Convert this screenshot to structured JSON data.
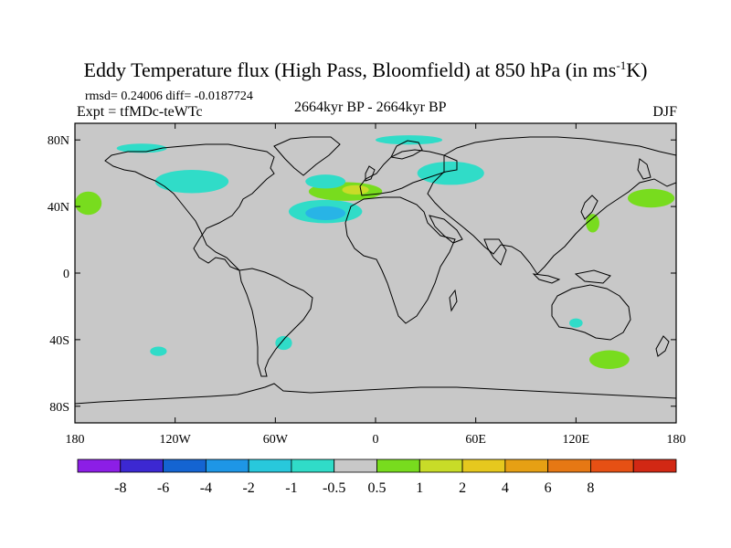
{
  "title": {
    "main": "Eddy Temperature flux (High Pass, Bloomfield) at 850 hPa (in ms",
    "sup": "-1",
    "suffix": "K)"
  },
  "stats": "rmsd= 0.24006 diff= -0.0187724",
  "experiment": "Expt = tfMDc-teWTc",
  "period": "2664kyr BP - 2664kyr BP",
  "season": "DJF",
  "map": {
    "projection": "cylindrical-equidistant",
    "lon_range": [
      -180,
      180
    ],
    "lat_range": [
      -90,
      90
    ],
    "background": "#c8c8c8",
    "lat_ticks": [
      "80N",
      "40N",
      "0",
      "40S",
      "80S"
    ],
    "lon_ticks": [
      "180",
      "120W",
      "60W",
      "0",
      "60E",
      "120E",
      "180"
    ]
  },
  "colorbar": {
    "colors": [
      "#8c1ee6",
      "#3c28d2",
      "#1464d2",
      "#1e96e6",
      "#28c8dc",
      "#30dcc8",
      "#c8c8c8",
      "#78dc1e",
      "#c8dc28",
      "#e6c81e",
      "#e6a014",
      "#e67814",
      "#e65014",
      "#d22814"
    ],
    "labels": [
      "-8",
      "-6",
      "-4",
      "-2",
      "-1",
      "-0.5",
      "0.5",
      "1",
      "2",
      "4",
      "6",
      "8"
    ]
  },
  "anomalies": [
    {
      "name": "n-atlantic-negative",
      "color": "#30dcc8",
      "lon": -30,
      "lat": 37,
      "rx": 22,
      "ry": 5
    },
    {
      "name": "n-atlantic-core",
      "color": "#28b4e6",
      "lon": -30,
      "lat": 36,
      "rx": 12,
      "ry": 3
    },
    {
      "name": "n-atlantic-positive",
      "color": "#78dc1e",
      "lon": -18,
      "lat": 49,
      "rx": 22,
      "ry": 4
    },
    {
      "name": "n-atlantic-positive-core",
      "color": "#c8dc28",
      "lon": -12,
      "lat": 50,
      "rx": 8,
      "ry": 2
    },
    {
      "name": "greenland-negative",
      "color": "#30dcc8",
      "lon": -30,
      "lat": 55,
      "rx": 12,
      "ry": 3
    },
    {
      "name": "arctic-negative",
      "color": "#30dcc8",
      "lon": 20,
      "lat": 80,
      "rx": 20,
      "ry": 2
    },
    {
      "name": "scandinavia-negative",
      "color": "#30dcc8",
      "lon": 45,
      "lat": 60,
      "rx": 20,
      "ry": 5
    },
    {
      "name": "alaska-negative",
      "color": "#30dcc8",
      "lon": -140,
      "lat": 75,
      "rx": 15,
      "ry": 2
    },
    {
      "name": "canada-negative",
      "color": "#30dcc8",
      "lon": -110,
      "lat": 55,
      "rx": 22,
      "ry": 5
    },
    {
      "name": "n-pacific-west-positive",
      "color": "#78dc1e",
      "lon": -172,
      "lat": 42,
      "rx": 8,
      "ry": 5
    },
    {
      "name": "n-pacific-east-positive",
      "color": "#78dc1e",
      "lon": 165,
      "lat": 45,
      "rx": 14,
      "ry": 4
    },
    {
      "name": "japan-positive",
      "color": "#78dc1e",
      "lon": 130,
      "lat": 30,
      "rx": 4,
      "ry": 4
    },
    {
      "name": "s-america-negative",
      "color": "#30dcc8",
      "lon": -55,
      "lat": -42,
      "rx": 5,
      "ry": 3
    },
    {
      "name": "s-indian-positive",
      "color": "#78dc1e",
      "lon": 140,
      "lat": -52,
      "rx": 12,
      "ry": 4
    },
    {
      "name": "s-pacific-negative",
      "color": "#30dcc8",
      "lon": -130,
      "lat": -47,
      "rx": 5,
      "ry": 2
    },
    {
      "name": "australia-negative",
      "color": "#30dcc8",
      "lon": 120,
      "lat": -30,
      "rx": 4,
      "ry": 2
    }
  ]
}
